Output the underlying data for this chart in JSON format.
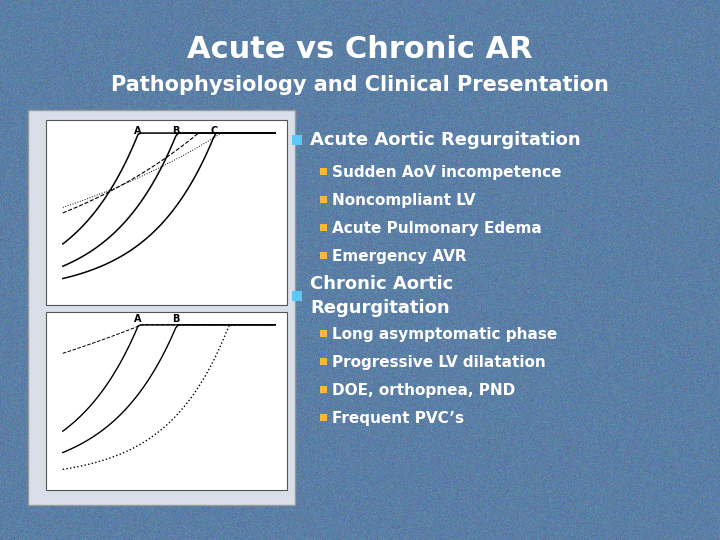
{
  "title_line1": "Acute vs Chronic AR",
  "title_line2": "Pathophysiology and Clinical Presentation",
  "title_color": "#FFFFFF",
  "subtitle_color": "#FFFFFF",
  "background_color": "#5B7FA6",
  "bullet_color_main": "#5BC8F5",
  "bullet_color_sub": "#FFB833",
  "text_color_main": "#FFFFFF",
  "text_color_sub": "#FFFFFF",
  "section1_title": "Acute Aortic Regurgitation",
  "section1_bullets": [
    "Sudden AoV incompetence",
    "Noncompliant LV",
    "Acute Pulmonary Edema",
    "Emergency AVR"
  ],
  "section2_title": "Chronic Aortic\nRegurgitation",
  "section2_bullets": [
    "Long asymptomatic phase",
    "Progressive LV dilatation",
    "DOE, orthopnea, PND",
    "Frequent PVC’s"
  ],
  "title_fontsize": 22,
  "subtitle_fontsize": 15,
  "section_title_fontsize": 13,
  "bullet_fontsize": 11
}
